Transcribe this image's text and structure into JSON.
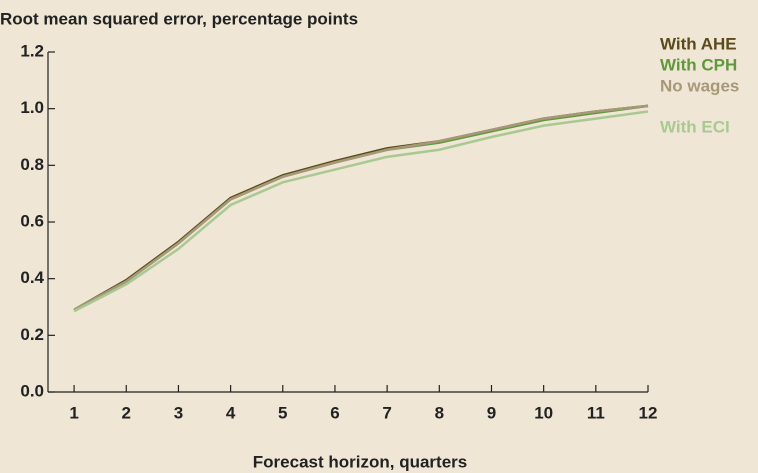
{
  "chart_data": {
    "type": "line",
    "title": "Root mean squared error, percentage points",
    "x_label": "Forecast horizon, quarters",
    "x": [
      1,
      2,
      3,
      4,
      5,
      6,
      7,
      8,
      9,
      10,
      11,
      12
    ],
    "xlim": [
      0.5,
      12
    ],
    "xticks": [
      1,
      2,
      3,
      4,
      5,
      6,
      7,
      8,
      9,
      10,
      11,
      12
    ],
    "ylim": [
      0,
      1.2
    ],
    "yticks": [
      {
        "value": 0,
        "label": "0.0"
      },
      {
        "value": 0.2,
        "label": "0.2"
      },
      {
        "value": 0.4,
        "label": "0.4"
      },
      {
        "value": 0.6,
        "label": "0.6"
      },
      {
        "value": 0.8,
        "label": "0.8"
      },
      {
        "value": 1.0,
        "label": "1.0"
      },
      {
        "value": 1.2,
        "label": "1.2"
      }
    ],
    "series": [
      {
        "name": "With AHE",
        "color": "#5a4a1c",
        "values": [
          0.29,
          0.395,
          0.53,
          0.685,
          0.765,
          0.815,
          0.86,
          0.885,
          0.925,
          0.965,
          0.99,
          1.01
        ]
      },
      {
        "name": "With CPH",
        "color": "#5e9a3a",
        "values": [
          0.29,
          0.39,
          0.525,
          0.68,
          0.76,
          0.81,
          0.855,
          0.88,
          0.92,
          0.96,
          0.985,
          1.01
        ]
      },
      {
        "name": "No wages",
        "color": "#a8987a",
        "values": [
          0.29,
          0.39,
          0.525,
          0.68,
          0.76,
          0.81,
          0.855,
          0.885,
          0.925,
          0.965,
          0.99,
          1.01
        ]
      },
      {
        "name": "With ECI",
        "color": "#a9c993",
        "values": [
          0.285,
          0.38,
          0.505,
          0.66,
          0.74,
          0.785,
          0.83,
          0.855,
          0.9,
          0.94,
          0.965,
          0.99
        ]
      }
    ]
  }
}
